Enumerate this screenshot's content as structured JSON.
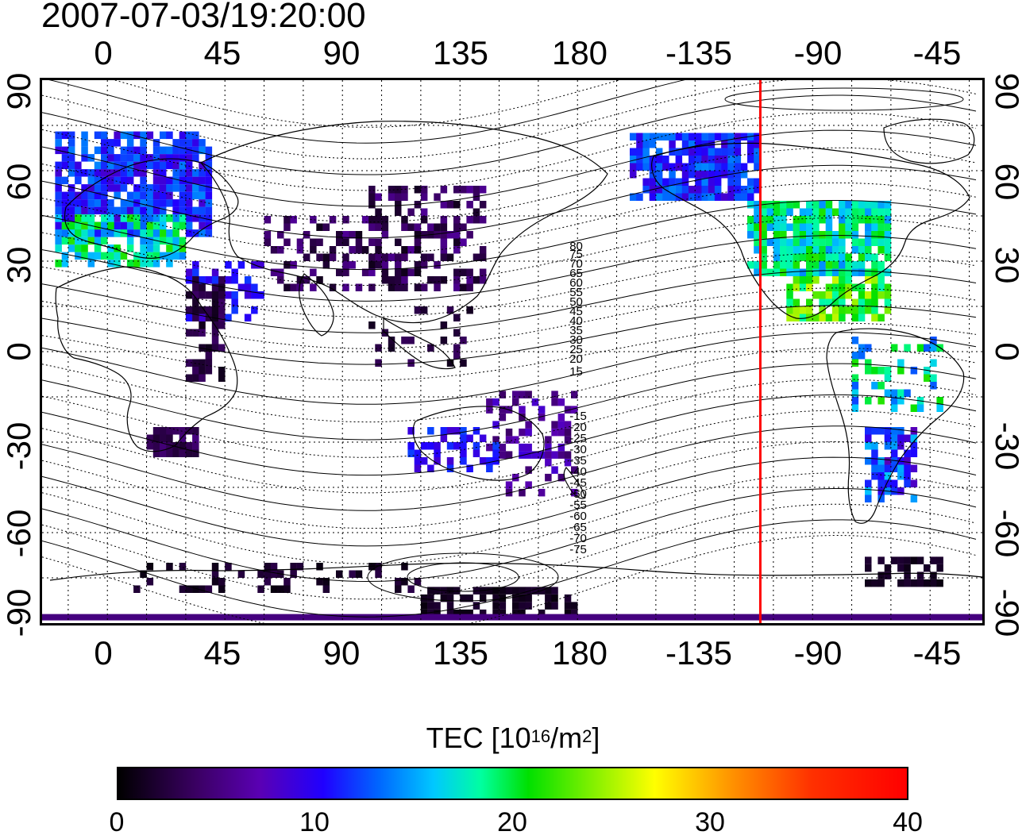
{
  "timestamp": "2007-07-03/19:20:00",
  "top_lon_ticks": [
    "0",
    "45",
    "90",
    "135",
    "180",
    "-135",
    "-90",
    "-45"
  ],
  "bottom_lon_ticks": [
    "0",
    "45",
    "90",
    "135",
    "180",
    "-135",
    "-90",
    "-45"
  ],
  "lat_ticks": [
    "90",
    "60",
    "30",
    "0",
    "-30",
    "-60",
    "-90"
  ],
  "contour_labels": [
    "80",
    "75",
    "70",
    "65",
    "60",
    "55",
    "50",
    "45",
    "40",
    "35",
    "30",
    "25",
    "20",
    "15",
    "-15",
    "-20",
    "-25",
    "-30",
    "-35",
    "-40",
    "-45",
    "-50",
    "-55",
    "-60",
    "-65",
    "-70",
    "-75"
  ],
  "colorbar": {
    "title_prefix": "TEC  [10",
    "title_exp": "16",
    "title_mid": "/m",
    "title_exp2": "2",
    "title_suffix": "]",
    "ticks": [
      "0",
      "10",
      "20",
      "30",
      "40"
    ],
    "min": 0,
    "max": 40
  },
  "map": {
    "lon_range": [
      -25,
      335
    ],
    "lat_range": [
      -90,
      90
    ],
    "terminator_longitude": -110,
    "terminator_color": "#ff0000"
  }
}
